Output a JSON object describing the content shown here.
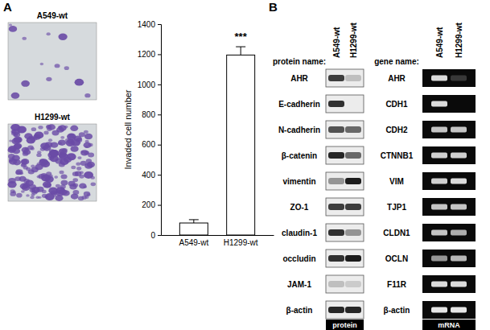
{
  "chart_data": {
    "type": "bar",
    "categories": [
      "A549-wt",
      "H1299-wt"
    ],
    "values": [
      80,
      1195
    ],
    "errors": [
      22,
      55
    ],
    "color": "#ffffff",
    "ylabel": "Invaded cell number",
    "ylim": [
      0,
      1400
    ],
    "yticks": [
      0,
      200,
      400,
      600,
      800,
      1000,
      1200,
      1400
    ],
    "annotations": [
      {
        "text": "***",
        "category": 1
      }
    ]
  },
  "panel_labels": [
    "A",
    "B"
  ],
  "blots": {
    "protein_header": "protein name:",
    "gene_header": "gene name:",
    "lanes": [
      "A549-wt",
      "H1299-wt"
    ],
    "protein_footer": "protein",
    "mrna_footer": "mRNA",
    "rows": [
      {
        "protein": "AHR",
        "gene": "AHR",
        "protein_intensity": [
          0.8,
          0.2
        ],
        "mrna_intensity": [
          0.9,
          0.2
        ]
      },
      {
        "protein": "E-cadherin",
        "gene": "CDH1",
        "protein_intensity": [
          0.85,
          0
        ],
        "mrna_intensity": [
          0.9,
          0
        ]
      },
      {
        "protein": "N-cadherin",
        "gene": "CDH2",
        "protein_intensity": [
          0.7,
          0.6
        ],
        "mrna_intensity": [
          0.8,
          0.8
        ]
      },
      {
        "protein": "β-catenin",
        "gene": "CTNNB1",
        "protein_intensity": [
          0.9,
          0.6
        ],
        "mrna_intensity": [
          0.85,
          0.85
        ]
      },
      {
        "protein": "vimentin",
        "gene": "VIM",
        "protein_intensity": [
          0.4,
          0.95
        ],
        "mrna_intensity": [
          0.85,
          0.9
        ]
      },
      {
        "protein": "ZO-1",
        "gene": "TJP1",
        "protein_intensity": [
          0.8,
          0.8
        ],
        "mrna_intensity": [
          0.8,
          0.8
        ]
      },
      {
        "protein": "claudin-1",
        "gene": "CLDN1",
        "protein_intensity": [
          0.85,
          0.4
        ],
        "mrna_intensity": [
          0.8,
          0.7
        ]
      },
      {
        "protein": "occludin",
        "gene": "OCLN",
        "protein_intensity": [
          0.85,
          0.95
        ],
        "mrna_intensity": [
          0.6,
          0.75
        ]
      },
      {
        "protein": "JAM-1",
        "gene": "F11R",
        "protein_intensity": [
          0.2,
          0.15
        ],
        "mrna_intensity": [
          0.9,
          0.9
        ]
      },
      {
        "protein": "β-actin",
        "gene": "β-actin",
        "protein_intensity": [
          0.9,
          0.9
        ],
        "mrna_intensity": [
          0.95,
          0.95
        ]
      }
    ]
  }
}
